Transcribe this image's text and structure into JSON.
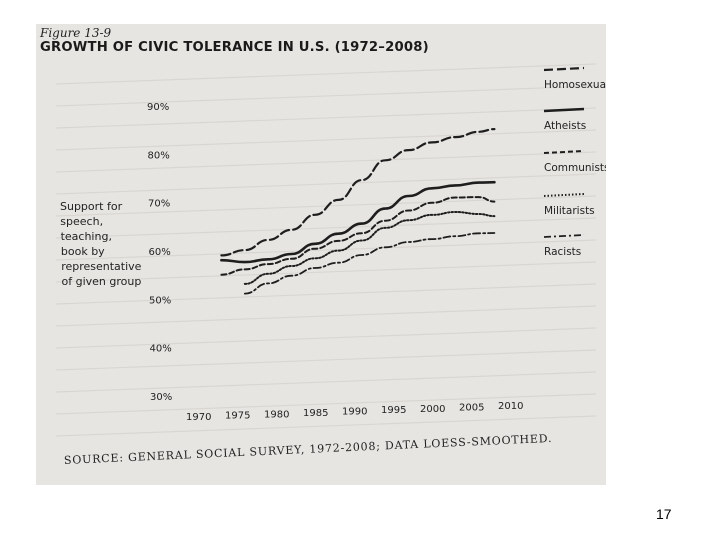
{
  "figure_label": "Figure 13-9",
  "source_note": "SOURCE: GENERAL SOCIAL SURVEY, 1972-2008; DATA LOESS-SMOOTHED.",
  "page_number": "17",
  "chart_data": {
    "type": "line",
    "title": "GROWTH OF CIVIC TOLERANCE IN U.S. (1972–2008)",
    "ylabel": "Support for speech, teaching, book by representative of given group",
    "ylabel_lines": [
      "Support for",
      "speech,",
      "teaching,",
      "book by",
      "representative",
      "of given group"
    ],
    "xlim": [
      1970,
      2010
    ],
    "ylim": [
      30,
      90
    ],
    "x_ticks": [
      1970,
      1975,
      1980,
      1985,
      1990,
      1995,
      2000,
      2005,
      2010
    ],
    "y_ticks": [
      30,
      40,
      50,
      60,
      70,
      80,
      90
    ],
    "y_tick_labels": [
      "30%",
      "40%",
      "50%",
      "60%",
      "70%",
      "80%",
      "90%"
    ],
    "x_tick_labels": [
      "1970",
      "1975",
      "1980",
      "1985",
      "1990",
      "1995",
      "2000",
      "2005",
      "2010"
    ],
    "series": [
      {
        "name": "Homosexuals",
        "style": "long-dash",
        "x": [
          1973,
          1976,
          1979,
          1982,
          1985,
          1988,
          1991,
          1994,
          1997,
          2000,
          2003,
          2006,
          2008
        ],
        "y": [
          59,
          60,
          62,
          64,
          67,
          70,
          74,
          78,
          80,
          81.5,
          82.5,
          83.5,
          84
        ]
      },
      {
        "name": "Atheists",
        "style": "solid",
        "x": [
          1973,
          1976,
          1979,
          1982,
          1985,
          1988,
          1991,
          1994,
          1997,
          2000,
          2003,
          2006,
          2008
        ],
        "y": [
          58,
          57.5,
          58,
          59,
          61,
          63,
          65,
          68,
          70.5,
          72,
          72.5,
          73,
          73
        ]
      },
      {
        "name": "Communists",
        "style": "short-dash",
        "x": [
          1973,
          1976,
          1979,
          1982,
          1985,
          1988,
          1991,
          1994,
          1997,
          2000,
          2003,
          2006,
          2008
        ],
        "y": [
          55,
          56,
          57,
          58,
          60,
          61.5,
          63,
          65.5,
          67.5,
          69,
          70,
          70,
          69
        ]
      },
      {
        "name": "Militarists",
        "style": "dotted",
        "x": [
          1976,
          1979,
          1982,
          1985,
          1988,
          1991,
          1994,
          1997,
          2000,
          2003,
          2006,
          2008
        ],
        "y": [
          53,
          55,
          56.5,
          58,
          59.5,
          61.5,
          64,
          65.5,
          66.5,
          67,
          66.5,
          66
        ]
      },
      {
        "name": "Racists",
        "style": "dash-dot",
        "x": [
          1976,
          1979,
          1982,
          1985,
          1988,
          1991,
          1994,
          1997,
          2000,
          2003,
          2006,
          2008
        ],
        "y": [
          51,
          53,
          54.5,
          56,
          57,
          58.5,
          60,
          61,
          61.5,
          62,
          62.5,
          62.5
        ]
      }
    ]
  }
}
